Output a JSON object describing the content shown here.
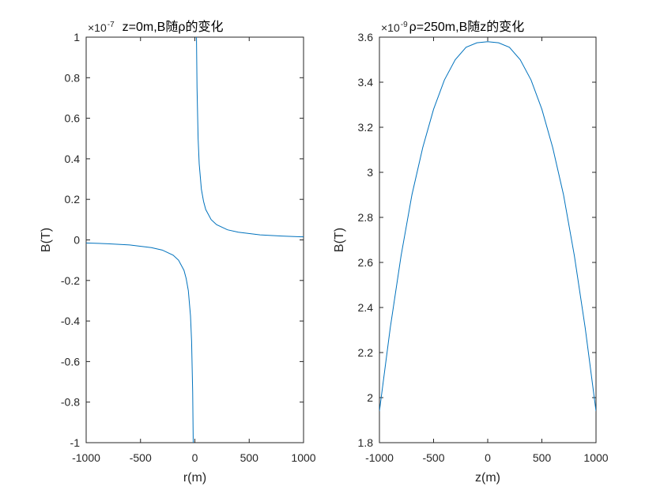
{
  "chart_data": [
    {
      "type": "line",
      "title": "z=0m,B随ρ的变化",
      "xlabel": "r(m)",
      "ylabel": "B(T)",
      "exponent_base": "×10",
      "exponent_power": "-7",
      "xlim": [
        -1000,
        1000
      ],
      "ylim": [
        -1,
        1
      ],
      "xticks": [
        -1000,
        -500,
        0,
        500,
        1000
      ],
      "yticks": [
        -1,
        -0.8,
        -0.6,
        -0.4,
        -0.2,
        0,
        0.2,
        0.4,
        0.6,
        0.8,
        1
      ],
      "xtick_labels": [
        "-1000",
        "-500",
        "0",
        "500",
        "1000"
      ],
      "ytick_labels": [
        "-1",
        "-0.8",
        "-0.6",
        "-0.4",
        "-0.2",
        "0",
        "0.2",
        "0.4",
        "0.6",
        "0.8",
        "1"
      ],
      "grid": false,
      "series": [
        {
          "color": "#0072BD",
          "x": [
            -1000,
            -800,
            -600,
            -400,
            -300,
            -200,
            -150,
            -100,
            -80,
            -60,
            -40,
            -30,
            -20,
            -15,
            15,
            20,
            30,
            40,
            60,
            80,
            100,
            150,
            200,
            300,
            400,
            600,
            800,
            1000
          ],
          "y": [
            -0.015,
            -0.019,
            -0.025,
            -0.038,
            -0.05,
            -0.075,
            -0.1,
            -0.15,
            -0.19,
            -0.25,
            -0.375,
            -0.5,
            -0.75,
            -1.0,
            1.0,
            0.75,
            0.5,
            0.375,
            0.25,
            0.19,
            0.15,
            0.1,
            0.075,
            0.05,
            0.038,
            0.025,
            0.019,
            0.015
          ]
        }
      ]
    },
    {
      "type": "line",
      "title": "ρ=250m,B随z的变化",
      "xlabel": "z(m)",
      "ylabel": "B(T)",
      "exponent_base": "×10",
      "exponent_power": "-9",
      "xlim": [
        -1000,
        1000
      ],
      "ylim": [
        1.8,
        3.6
      ],
      "xticks": [
        -1000,
        -500,
        0,
        500,
        1000
      ],
      "yticks": [
        1.8,
        2,
        2.2,
        2.4,
        2.6,
        2.8,
        3,
        3.2,
        3.4,
        3.6
      ],
      "xtick_labels": [
        "-1000",
        "-500",
        "0",
        "500",
        "1000"
      ],
      "ytick_labels": [
        "1.8",
        "2",
        "2.2",
        "2.4",
        "2.6",
        "2.8",
        "3",
        "3.2",
        "3.4",
        "3.6"
      ],
      "grid": false,
      "series": [
        {
          "color": "#0072BD",
          "x": [
            -1000,
            -900,
            -800,
            -700,
            -600,
            -500,
            -400,
            -300,
            -200,
            -100,
            0,
            100,
            200,
            300,
            400,
            500,
            600,
            700,
            800,
            900,
            1000
          ],
          "y": [
            1.94,
            2.31,
            2.63,
            2.9,
            3.11,
            3.28,
            3.41,
            3.5,
            3.555,
            3.575,
            3.58,
            3.575,
            3.555,
            3.5,
            3.41,
            3.28,
            3.11,
            2.9,
            2.63,
            2.31,
            1.94
          ]
        }
      ]
    }
  ]
}
